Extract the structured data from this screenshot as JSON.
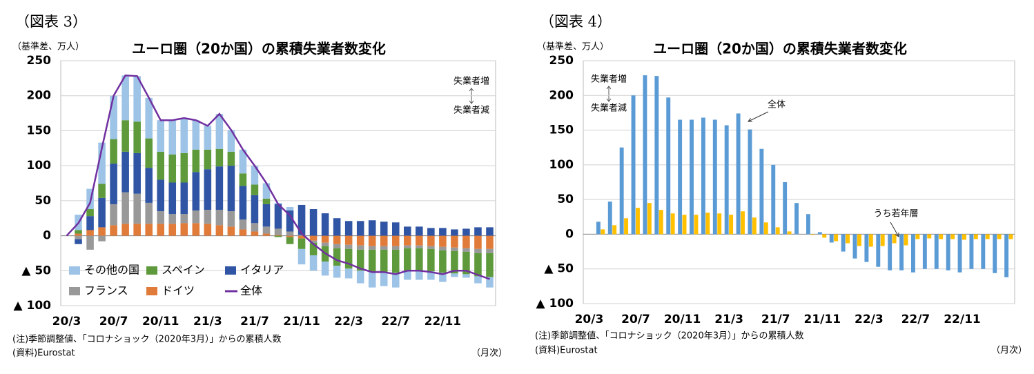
{
  "chart_data": [
    {
      "type": "stacked_bar",
      "figure_label": "（図表 3）",
      "unit_label": "（基準差、万人）",
      "title": "ユーロ圏（20か国）の累積失業者数変化",
      "annotations": [
        "失業者増",
        "失業者減"
      ],
      "notes": [
        "(注)季節調整値、「コロナショック（2020年3月）」からの累積人数",
        "(資料)Eurostat"
      ],
      "x_unit": "（月次）",
      "categories": [
        "20/3",
        null,
        null,
        null,
        "20/7",
        null,
        null,
        null,
        "20/11",
        null,
        null,
        null,
        "21/3",
        null,
        null,
        null,
        "21/7",
        null,
        null,
        null,
        "21/11",
        null,
        null,
        null,
        "22/3",
        null,
        null,
        null,
        "22/7",
        null,
        null,
        null,
        "22/11",
        null,
        null,
        null,
        null
      ],
      "ylim": [
        -100,
        250
      ],
      "yticks": [
        {
          "value": -100,
          "label": "▲ 100"
        },
        {
          "value": -50,
          "label": "▲ 50"
        },
        0,
        50,
        100,
        150,
        200,
        250
      ],
      "grid": true,
      "series": [
        {
          "name": "その他の国",
          "color": "#9dc3e6",
          "values": [
            0,
            22,
            29,
            59,
            62,
            64,
            65,
            58,
            45,
            49,
            50,
            42,
            34,
            50,
            31,
            34,
            27,
            22,
            2,
            5,
            -22,
            -22,
            -20,
            -17,
            -14,
            -18,
            -22,
            -19,
            -21,
            -13,
            -13,
            -12,
            -13,
            -5,
            -5,
            -10,
            -15
          ]
        },
        {
          "name": "スペイン",
          "color": "#5e9a3b",
          "values": [
            0,
            5,
            10,
            20,
            35,
            45,
            45,
            42,
            40,
            40,
            42,
            32,
            28,
            25,
            20,
            18,
            15,
            8,
            -2,
            -10,
            -15,
            -18,
            -22,
            -25,
            -28,
            -30,
            -32,
            -33,
            -33,
            -32,
            -32,
            -32,
            -32,
            -32,
            -32,
            -33,
            -34
          ]
        },
        {
          "name": "イタリア",
          "color": "#2f55a4",
          "values": [
            0,
            -7,
            20,
            42,
            58,
            58,
            58,
            50,
            45,
            45,
            45,
            55,
            58,
            62,
            65,
            48,
            40,
            32,
            35,
            30,
            43,
            38,
            32,
            25,
            21,
            21,
            22,
            20,
            19,
            13,
            13,
            11,
            11,
            9,
            10,
            12,
            12
          ]
        },
        {
          "name": "フランス",
          "color": "#999999",
          "values": [
            0,
            -5,
            -20,
            -8,
            30,
            45,
            43,
            30,
            18,
            14,
            13,
            18,
            20,
            22,
            22,
            14,
            12,
            10,
            9,
            6,
            1,
            -3,
            -5,
            -6,
            -6,
            -6,
            -5,
            -5,
            -5,
            -4,
            -4,
            -4,
            -5,
            -5,
            -5,
            -6,
            -6
          ]
        },
        {
          "name": "ドイツ",
          "color": "#e07b39",
          "values": [
            0,
            3,
            8,
            12,
            15,
            17,
            17,
            17,
            17,
            17,
            18,
            18,
            17,
            15,
            13,
            9,
            6,
            3,
            1,
            -2,
            -4,
            -7,
            -10,
            -12,
            -13,
            -14,
            -15,
            -15,
            -15,
            -14,
            -14,
            -15,
            -16,
            -17,
            -18,
            -19,
            -19
          ]
        },
        {
          "name": "全体",
          "color": "#7030a0",
          "type": "line",
          "values": [
            0,
            18,
            47,
            125,
            200,
            229,
            228,
            197,
            165,
            165,
            168,
            165,
            157,
            174,
            151,
            123,
            100,
            75,
            45,
            29,
            3,
            -12,
            -25,
            -35,
            -40,
            -47,
            -52,
            -52,
            -55,
            -50,
            -50,
            -52,
            -55,
            -50,
            -50,
            -56,
            -62
          ]
        }
      ]
    },
    {
      "type": "bar",
      "figure_label": "（図表 4）",
      "unit_label": "（基準差、万人）",
      "title": "ユーロ圏（20か国）の累積失業者数変化",
      "annotations": [
        "失業者増",
        "失業者減"
      ],
      "notes": [
        "(注)季節調整値、「コロナショック（2020年3月）」からの累積人数",
        "(資料)Eurostat"
      ],
      "x_unit": "（月次）",
      "categories": [
        "20/3",
        null,
        null,
        null,
        "20/7",
        null,
        null,
        null,
        "20/11",
        null,
        null,
        null,
        "21/3",
        null,
        null,
        null,
        "21/7",
        null,
        null,
        null,
        "21/11",
        null,
        null,
        null,
        "22/3",
        null,
        null,
        null,
        "22/7",
        null,
        null,
        null,
        "22/11",
        null,
        null,
        null,
        null
      ],
      "ylim": [
        -100,
        250
      ],
      "yticks": [
        {
          "value": -100,
          "label": "▲ 100"
        },
        {
          "value": -50,
          "label": "▲ 50"
        },
        0,
        50,
        100,
        150,
        200,
        250
      ],
      "grid": true,
      "series": [
        {
          "name": "全体",
          "color": "#5b9bd5",
          "values": [
            0,
            18,
            47,
            125,
            200,
            229,
            228,
            197,
            165,
            165,
            168,
            165,
            157,
            174,
            151,
            123,
            100,
            75,
            45,
            29,
            3,
            -12,
            -25,
            -35,
            -40,
            -47,
            -52,
            -52,
            -55,
            -50,
            -50,
            -52,
            -55,
            -50,
            -50,
            -56,
            -62
          ]
        },
        {
          "name": "うち若年層",
          "color": "#ffc000",
          "values": [
            0,
            7,
            13,
            23,
            38,
            45,
            35,
            30,
            28,
            28,
            31,
            30,
            28,
            33,
            24,
            17,
            10,
            4,
            0,
            -1,
            -5,
            -10,
            -13,
            -17,
            -18,
            -17,
            -13,
            -16,
            -7,
            -6,
            -7,
            -7,
            -8,
            -7,
            -7,
            -7,
            -7
          ]
        }
      ]
    }
  ]
}
